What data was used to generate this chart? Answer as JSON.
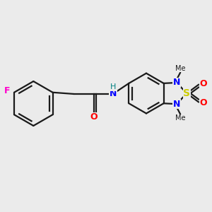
{
  "background_color": "#ebebeb",
  "atom_colors": {
    "C": "#1a1a1a",
    "N": "#0000ff",
    "O": "#ff0000",
    "S": "#cccc00",
    "F": "#ff00cc",
    "H": "#008080"
  },
  "bond_color": "#1a1a1a",
  "bond_width": 1.6,
  "font_size": 10,
  "figsize": [
    3.0,
    3.0
  ],
  "dpi": 100
}
